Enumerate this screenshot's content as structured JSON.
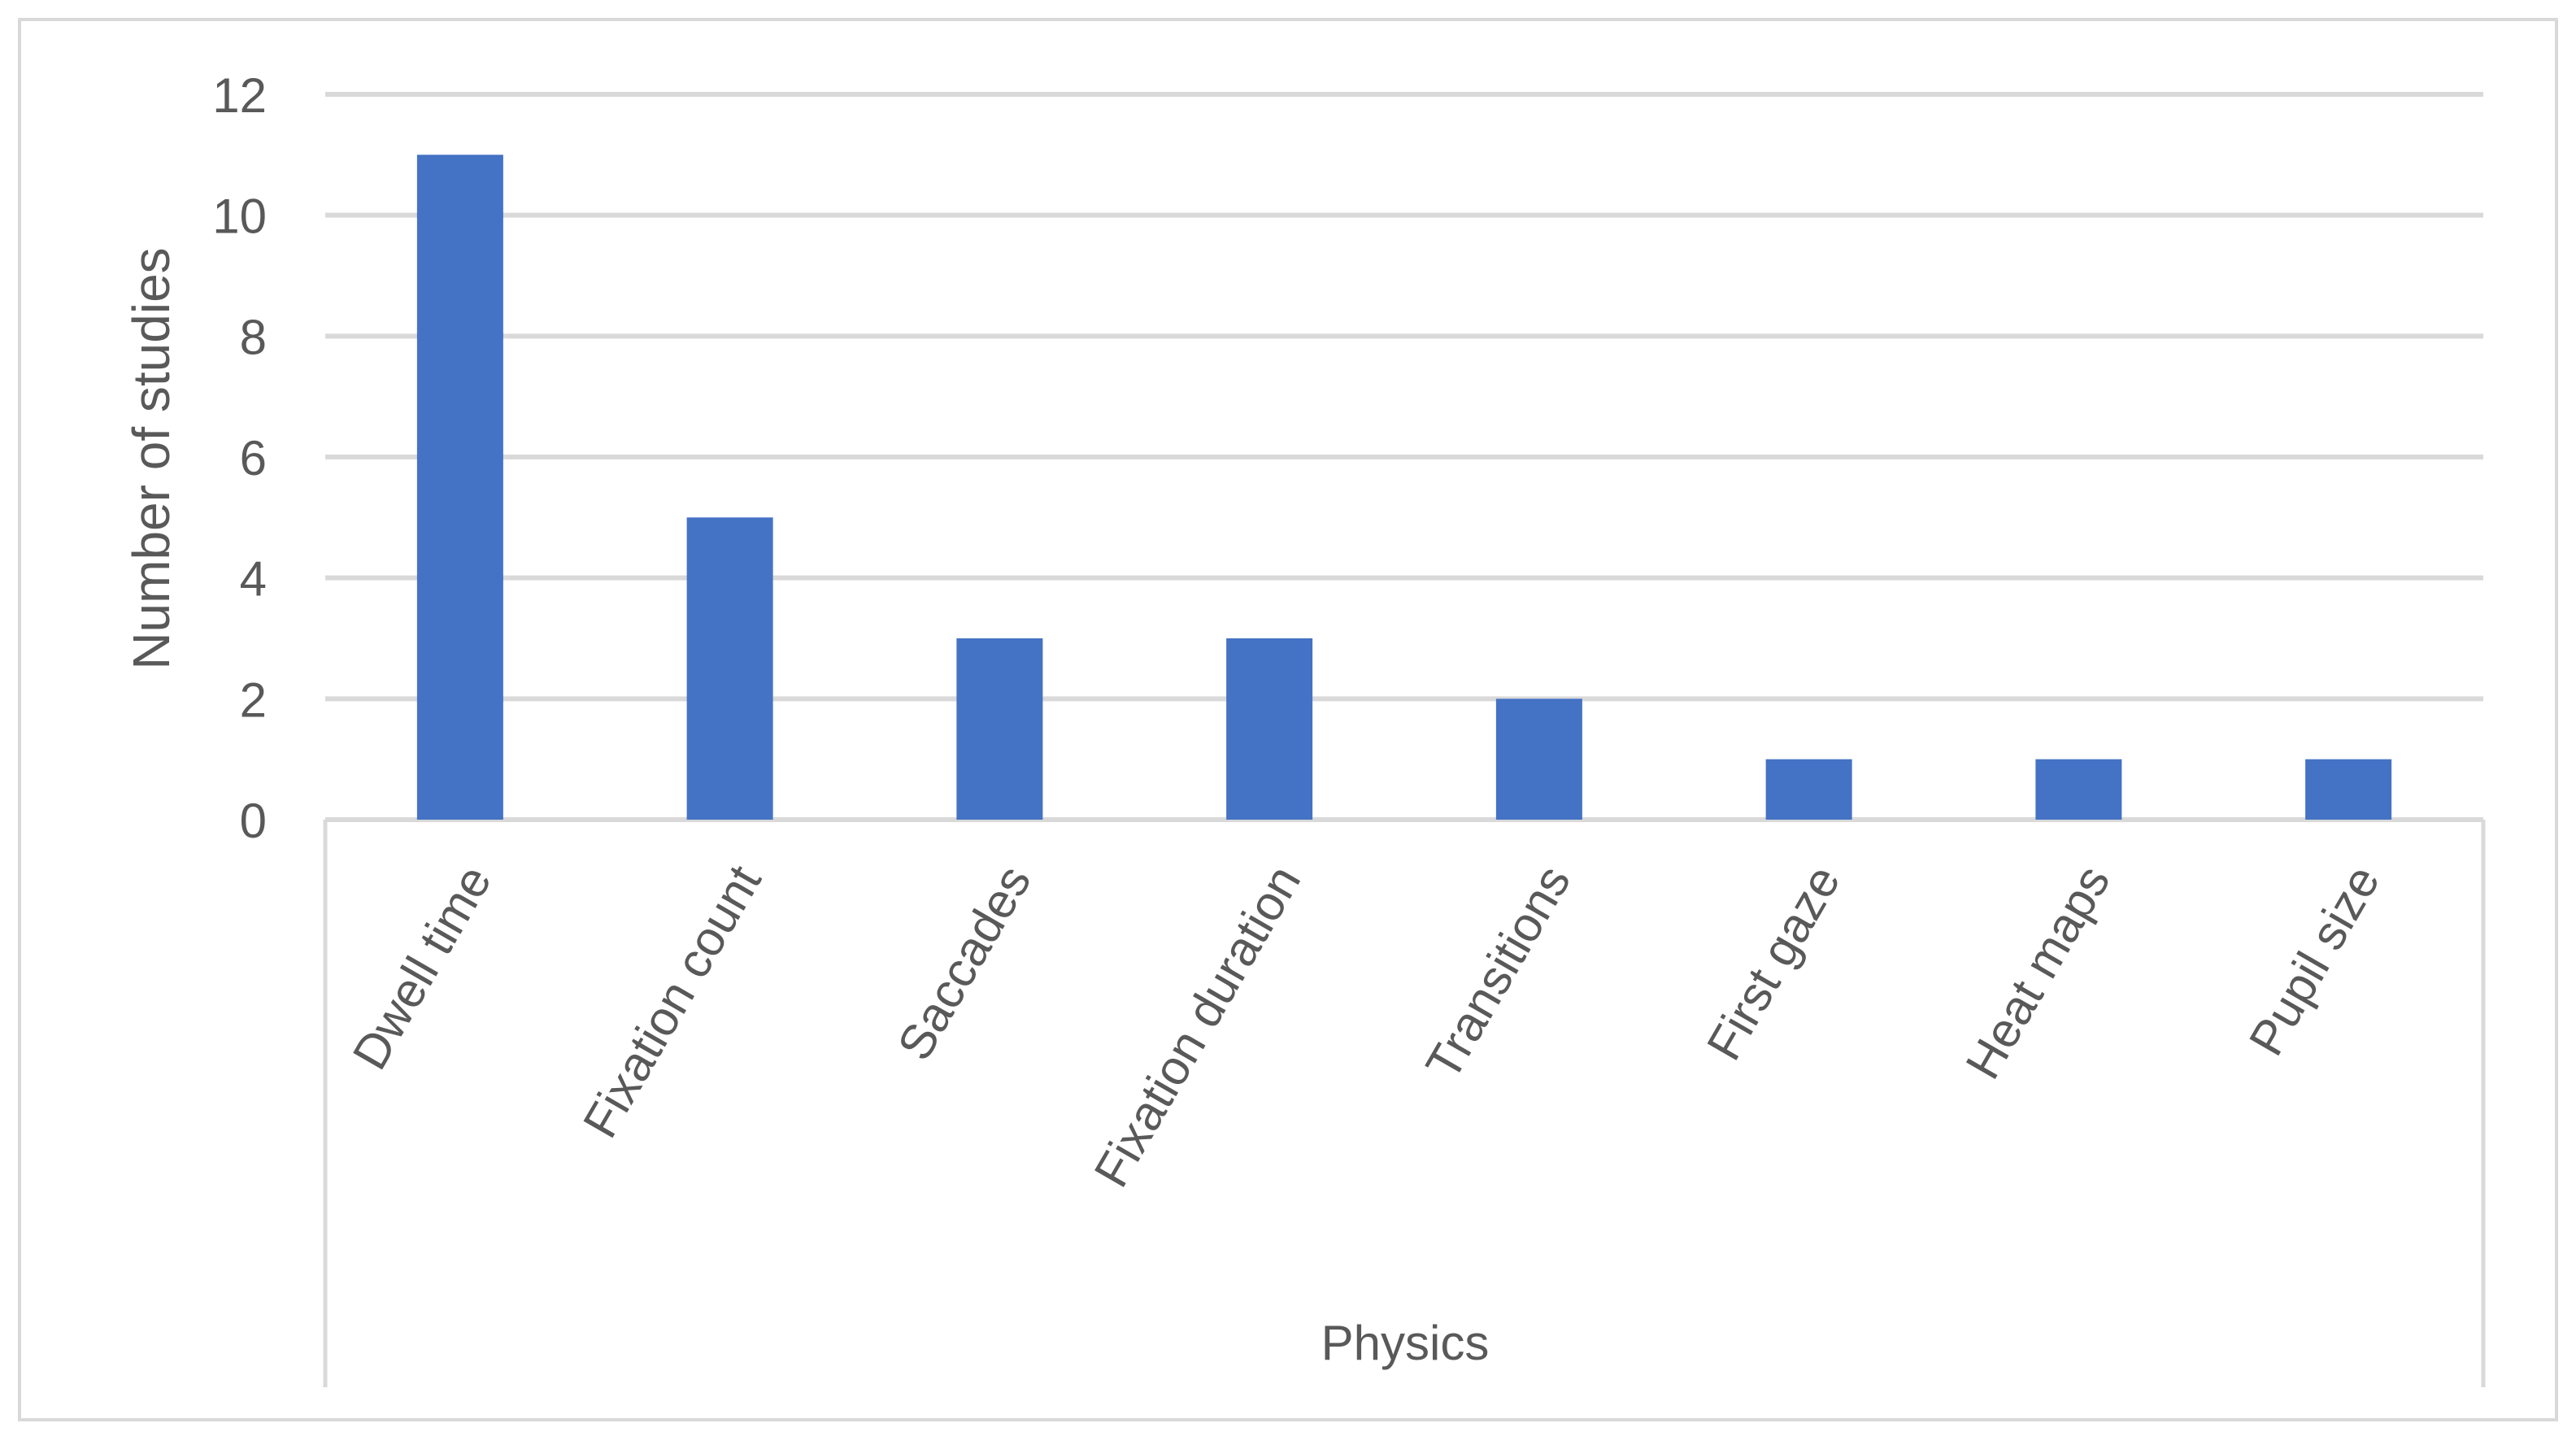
{
  "chart_data": {
    "type": "bar",
    "categories": [
      "Dwell time",
      "Fixation count",
      "Saccades",
      "Fixation duration",
      "Transitions",
      "First gaze",
      "Heat maps",
      "Pupil size"
    ],
    "values": [
      11,
      5,
      3,
      3,
      2,
      1,
      1,
      1
    ],
    "group_label": "Physics",
    "title": "",
    "xlabel": "",
    "ylabel": "Number of studies",
    "ylim": [
      0,
      12
    ],
    "yticks": [
      0,
      2,
      4,
      6,
      8,
      10,
      12
    ],
    "grid": true,
    "legend": "none",
    "colors": {
      "bar": "#4472C4",
      "grid": "#D9D9D9",
      "text": "#595959",
      "border": "#D9D9D9"
    }
  }
}
